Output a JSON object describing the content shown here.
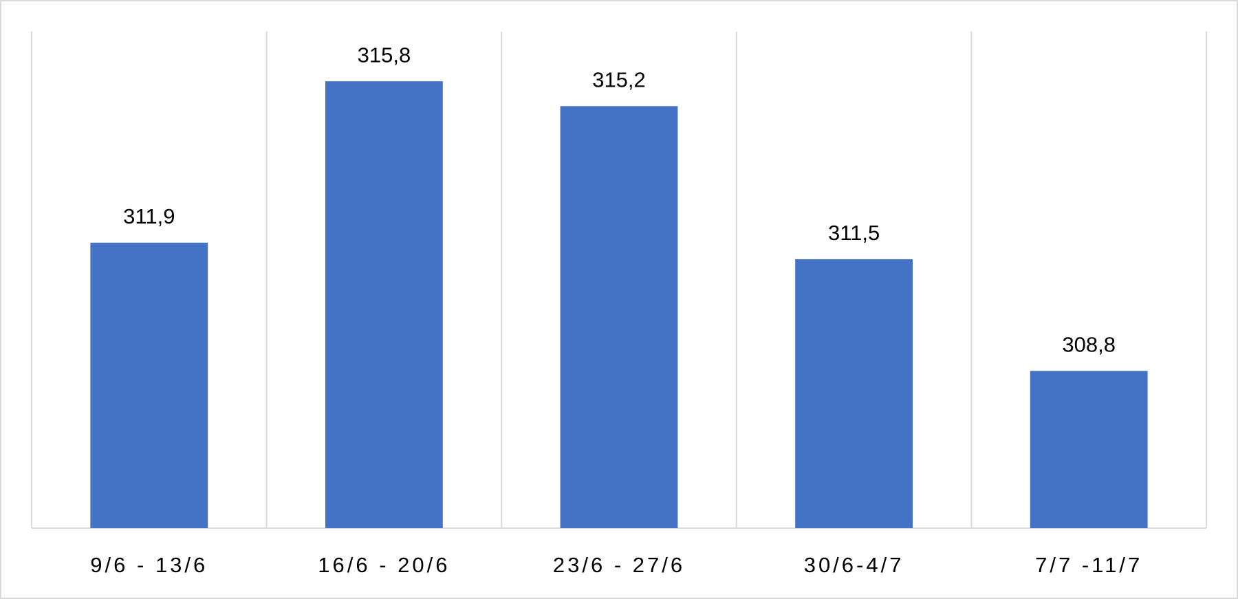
{
  "chart_data": {
    "type": "bar",
    "categories": [
      "9/6 - 13/6",
      "16/6 - 20/6",
      "23/6 - 27/6",
      "30/6-4/7",
      "7/7 -11/7"
    ],
    "values": [
      311.9,
      315.8,
      315.2,
      311.5,
      308.8
    ],
    "value_labels": [
      "311,9",
      "315,8",
      "315,2",
      "311,5",
      "308,8"
    ],
    "color": "#4472c4",
    "ylim": [
      305,
      317
    ],
    "grid": "x"
  }
}
